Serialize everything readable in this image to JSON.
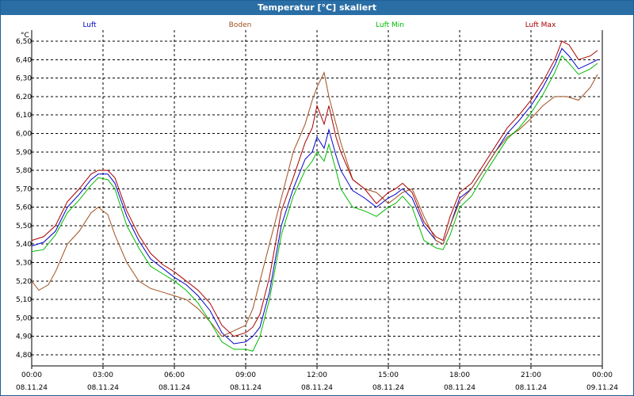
{
  "window": {
    "title": "Temperatur [°C] skaliert"
  },
  "chart_data": {
    "type": "line",
    "title": "Temperatur [°C] skaliert",
    "ylabel": "°C",
    "xlabel": "",
    "ylim": [
      4.74,
      6.56
    ],
    "xlim": [
      0,
      24
    ],
    "grid": true,
    "legend_position": "top",
    "y_ticks": [
      "6,50",
      "6,40",
      "6,30",
      "6,20",
      "6,10",
      "6,00",
      "5,90",
      "5,80",
      "5,70",
      "5,60",
      "5,50",
      "5,40",
      "5,30",
      "5,20",
      "5,10",
      "5,00",
      "4,90",
      "4,80"
    ],
    "x_ticks": [
      {
        "time": "00:00",
        "date": "08.11.24"
      },
      {
        "time": "03:00",
        "date": "08.11.24"
      },
      {
        "time": "06:00",
        "date": "08.11.24"
      },
      {
        "time": "09:00",
        "date": "08.11.24"
      },
      {
        "time": "12:00",
        "date": "08.11.24"
      },
      {
        "time": "15:00",
        "date": "08.11.24"
      },
      {
        "time": "18:00",
        "date": "08.11.24"
      },
      {
        "time": "21:00",
        "date": "08.11.24"
      },
      {
        "time": "00:00",
        "date": "09.11.24"
      }
    ],
    "series": [
      {
        "name": "Luft",
        "color": "#0000cc",
        "x": [
          0,
          0.5,
          1,
          1.5,
          2,
          2.5,
          2.8,
          3.2,
          3.5,
          4,
          4.5,
          5,
          5.5,
          6,
          6.5,
          7,
          7.5,
          8,
          8.5,
          9,
          9.3,
          9.6,
          10,
          10.5,
          11,
          11.5,
          11.8,
          12,
          12.3,
          12.5,
          12.8,
          13,
          13.5,
          14,
          14.5,
          15,
          15.3,
          15.6,
          16,
          16.5,
          17,
          17.3,
          17.6,
          18,
          18.5,
          19,
          19.5,
          20,
          20.5,
          21,
          21.5,
          22,
          22.3,
          22.6,
          23,
          23.5,
          23.8
        ],
        "values": [
          5.39,
          5.41,
          5.47,
          5.6,
          5.67,
          5.75,
          5.78,
          5.78,
          5.73,
          5.55,
          5.42,
          5.32,
          5.27,
          5.22,
          5.18,
          5.12,
          5.04,
          4.92,
          4.86,
          4.87,
          4.9,
          4.95,
          5.14,
          5.5,
          5.7,
          5.86,
          5.9,
          5.98,
          5.92,
          6.02,
          5.88,
          5.8,
          5.69,
          5.65,
          5.6,
          5.65,
          5.67,
          5.7,
          5.65,
          5.5,
          5.42,
          5.4,
          5.5,
          5.65,
          5.7,
          5.8,
          5.9,
          6.0,
          6.07,
          6.15,
          6.25,
          6.37,
          6.46,
          6.42,
          6.35,
          6.38,
          6.4
        ]
      },
      {
        "name": "Boden",
        "color": "#a0501e",
        "x": [
          0,
          0.3,
          0.7,
          1,
          1.5,
          2,
          2.5,
          2.8,
          3.2,
          3.5,
          4,
          4.5,
          5,
          5.5,
          6,
          6.5,
          7,
          7.5,
          8,
          8.5,
          9,
          9.3,
          9.6,
          10,
          10.5,
          11,
          11.5,
          11.8,
          12,
          12.3,
          12.5,
          12.8,
          13,
          13.5,
          14,
          14.5,
          15,
          15.3,
          15.6,
          16,
          16.5,
          17,
          17.3,
          17.6,
          18,
          18.5,
          19,
          19.5,
          20,
          20.5,
          21,
          21.5,
          22,
          22.5,
          23,
          23.5,
          23.8
        ],
        "values": [
          5.2,
          5.15,
          5.18,
          5.25,
          5.4,
          5.47,
          5.57,
          5.6,
          5.56,
          5.45,
          5.3,
          5.2,
          5.16,
          5.14,
          5.12,
          5.1,
          5.05,
          4.98,
          4.9,
          4.93,
          4.96,
          5.05,
          5.2,
          5.4,
          5.65,
          5.9,
          6.05,
          6.18,
          6.25,
          6.33,
          6.2,
          6.05,
          5.95,
          5.75,
          5.7,
          5.68,
          5.62,
          5.65,
          5.68,
          5.7,
          5.55,
          5.42,
          5.4,
          5.5,
          5.63,
          5.7,
          5.8,
          5.9,
          5.98,
          6.02,
          6.08,
          6.15,
          6.2,
          6.2,
          6.18,
          6.25,
          6.32
        ]
      },
      {
        "name": "Luft Min",
        "color": "#00bb00",
        "x": [
          0,
          0.5,
          1,
          1.5,
          2,
          2.5,
          2.8,
          3.2,
          3.5,
          4,
          4.5,
          5,
          5.5,
          6,
          6.5,
          7,
          7.5,
          8,
          8.5,
          9,
          9.3,
          9.6,
          10,
          10.5,
          11,
          11.5,
          11.8,
          12,
          12.3,
          12.5,
          12.8,
          13,
          13.5,
          14,
          14.5,
          15,
          15.3,
          15.6,
          16,
          16.5,
          17,
          17.3,
          17.6,
          18,
          18.5,
          19,
          19.5,
          20,
          20.5,
          21,
          21.5,
          22,
          22.3,
          22.6,
          23,
          23.5,
          23.8
        ],
        "values": [
          5.36,
          5.37,
          5.45,
          5.57,
          5.64,
          5.72,
          5.76,
          5.75,
          5.7,
          5.5,
          5.38,
          5.28,
          5.24,
          5.2,
          5.15,
          5.08,
          4.98,
          4.87,
          4.83,
          4.83,
          4.82,
          4.9,
          5.1,
          5.45,
          5.66,
          5.8,
          5.85,
          5.9,
          5.85,
          5.94,
          5.8,
          5.7,
          5.6,
          5.58,
          5.55,
          5.6,
          5.62,
          5.66,
          5.6,
          5.42,
          5.38,
          5.37,
          5.45,
          5.6,
          5.66,
          5.77,
          5.87,
          5.97,
          6.03,
          6.11,
          6.21,
          6.33,
          6.42,
          6.38,
          6.32,
          6.35,
          6.38
        ]
      },
      {
        "name": "Luft Max",
        "color": "#aa0000",
        "x": [
          0,
          0.5,
          1,
          1.5,
          2,
          2.5,
          2.8,
          3.2,
          3.5,
          4,
          4.5,
          5,
          5.5,
          6,
          6.5,
          7,
          7.5,
          8,
          8.5,
          9,
          9.3,
          9.6,
          10,
          10.5,
          11,
          11.5,
          11.8,
          12,
          12.3,
          12.5,
          12.8,
          13,
          13.5,
          14,
          14.5,
          15,
          15.3,
          15.6,
          16,
          16.5,
          17,
          17.3,
          17.6,
          18,
          18.5,
          19,
          19.5,
          20,
          20.5,
          21,
          21.5,
          22,
          22.3,
          22.6,
          23,
          23.5,
          23.8
        ],
        "values": [
          5.42,
          5.44,
          5.5,
          5.63,
          5.7,
          5.78,
          5.8,
          5.8,
          5.76,
          5.58,
          5.45,
          5.35,
          5.29,
          5.25,
          5.2,
          5.15,
          5.08,
          4.96,
          4.9,
          4.92,
          4.95,
          5.02,
          5.22,
          5.58,
          5.76,
          5.95,
          6.03,
          6.15,
          6.05,
          6.15,
          5.98,
          5.9,
          5.75,
          5.7,
          5.62,
          5.68,
          5.7,
          5.73,
          5.68,
          5.52,
          5.44,
          5.42,
          5.55,
          5.68,
          5.73,
          5.83,
          5.93,
          6.03,
          6.1,
          6.18,
          6.28,
          6.4,
          6.5,
          6.48,
          6.4,
          6.42,
          6.45
        ]
      }
    ]
  }
}
